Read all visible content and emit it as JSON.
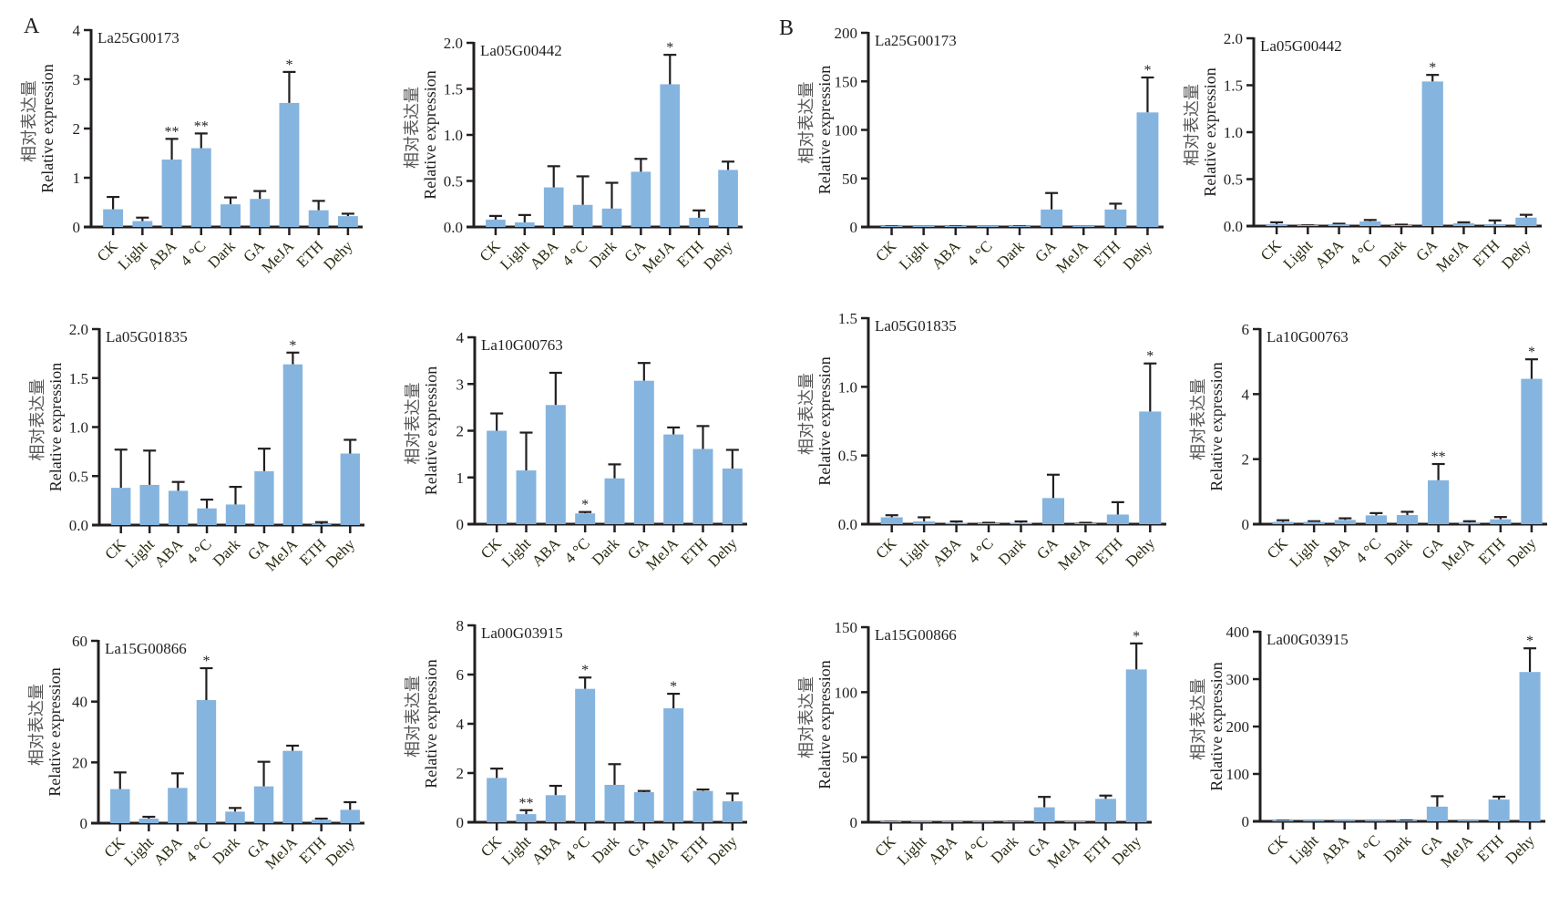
{
  "figure": {
    "panel_labels": [
      "A",
      "B"
    ],
    "bar_color": "#85b4df",
    "axis_color": "#231f20",
    "ylabel_cn": "相对表达量",
    "ylabel_en": "Relative expression"
  },
  "chart_data": [
    {
      "type": "bar",
      "group": "A",
      "title": "La25G00173",
      "categories": [
        "CK",
        "Light",
        "ABA",
        "4 °C",
        "Dark",
        "GA",
        "MeJA",
        "ETH",
        "Dehy"
      ],
      "values": [
        0.36,
        0.12,
        1.37,
        1.6,
        0.46,
        0.57,
        2.52,
        0.34,
        0.22
      ],
      "errors": [
        0.25,
        0.07,
        0.42,
        0.3,
        0.14,
        0.16,
        0.63,
        0.19,
        0.05
      ],
      "significance": [
        "",
        "",
        "**",
        "**",
        "",
        "",
        "*",
        "",
        ""
      ],
      "yticks": [
        "0",
        "1",
        "2",
        "3",
        "4"
      ],
      "ylim": [
        0,
        4
      ],
      "xlabel": "",
      "ylabel": "相对表达量 Relative expression"
    },
    {
      "type": "bar",
      "group": "A",
      "title": "La05G00442",
      "categories": [
        "CK",
        "Light",
        "ABA",
        "4 °C",
        "Dark",
        "GA",
        "MeJA",
        "ETH",
        "Dehy"
      ],
      "values": [
        0.08,
        0.05,
        0.43,
        0.24,
        0.2,
        0.6,
        1.55,
        0.1,
        0.62
      ],
      "errors": [
        0.04,
        0.08,
        0.23,
        0.31,
        0.28,
        0.14,
        0.32,
        0.08,
        0.09
      ],
      "significance": [
        "",
        "",
        "",
        "",
        "",
        "",
        "*",
        "",
        ""
      ],
      "yticks": [
        "0.0",
        "0.5",
        "1.0",
        "1.5",
        "2.0"
      ],
      "ylim": [
        0,
        2
      ],
      "xlabel": "",
      "ylabel": "相对表达量 Relative expression"
    },
    {
      "type": "bar",
      "group": "B",
      "title": "La25G00173",
      "categories": [
        "CK",
        "Light",
        "ABA",
        "4 °C",
        "Dark",
        "GA",
        "MeJA",
        "ETH",
        "Dehy"
      ],
      "values": [
        0.5,
        0.2,
        0.5,
        0.2,
        0.5,
        18,
        0.2,
        18,
        118
      ],
      "errors": [
        0.2,
        0.1,
        0.2,
        0.1,
        0.2,
        17,
        0.1,
        6,
        36
      ],
      "significance": [
        "",
        "",
        "",
        "",
        "",
        "",
        "",
        "",
        "*"
      ],
      "yticks": [
        "0",
        "50",
        "100",
        "150",
        "200"
      ],
      "ylim": [
        0,
        200
      ],
      "xlabel": "",
      "ylabel": "相对表达量 Relative expression"
    },
    {
      "type": "bar",
      "group": "B",
      "title": "La05G00442",
      "categories": [
        "CK",
        "Light",
        "ABA",
        "4 °C",
        "Dark",
        "GA",
        "MeJA",
        "ETH",
        "Dehy"
      ],
      "values": [
        0.02,
        0.005,
        0.02,
        0.05,
        0.01,
        1.54,
        0.03,
        0.02,
        0.09
      ],
      "errors": [
        0.02,
        0.003,
        0.005,
        0.015,
        0.005,
        0.07,
        0.01,
        0.04,
        0.03
      ],
      "significance": [
        "",
        "",
        "",
        "",
        "",
        "*",
        "",
        "",
        ""
      ],
      "yticks": [
        "0.0",
        "0.5",
        "1.0",
        "1.5",
        "2.0"
      ],
      "ylim": [
        0,
        2
      ],
      "xlabel": "",
      "ylabel": "相对表达量 Relative expression"
    },
    {
      "type": "bar",
      "group": "A",
      "title": "La05G01835",
      "categories": [
        "CK",
        "Light",
        "ABA",
        "4 °C",
        "Dark",
        "GA",
        "MeJA",
        "ETH",
        "Dehy"
      ],
      "values": [
        0.38,
        0.41,
        0.35,
        0.17,
        0.21,
        0.55,
        1.64,
        0.01,
        0.73
      ],
      "errors": [
        0.39,
        0.35,
        0.09,
        0.09,
        0.18,
        0.23,
        0.12,
        0.02,
        0.14
      ],
      "significance": [
        "",
        "",
        "",
        "",
        "",
        "",
        "*",
        "",
        ""
      ],
      "yticks": [
        "0.0",
        "0.5",
        "1.0",
        "1.5",
        "2.0"
      ],
      "ylim": [
        0,
        2
      ],
      "xlabel": "",
      "ylabel": "相对表达量 Relative expression"
    },
    {
      "type": "bar",
      "group": "A",
      "title": "La10G00763",
      "categories": [
        "CK",
        "Light",
        "ABA",
        "4 °C",
        "Dark",
        "GA",
        "MeJA",
        "ETH",
        "Dehy"
      ],
      "values": [
        2.0,
        1.15,
        2.55,
        0.23,
        0.98,
        3.07,
        1.92,
        1.61,
        1.19
      ],
      "errors": [
        0.37,
        0.81,
        0.69,
        0.03,
        0.3,
        0.38,
        0.15,
        0.49,
        0.4
      ],
      "significance": [
        "",
        "",
        "",
        "*",
        "",
        "",
        "",
        "",
        ""
      ],
      "yticks": [
        "0",
        "1",
        "2",
        "3",
        "4"
      ],
      "ylim": [
        0,
        4
      ],
      "xlabel": "",
      "ylabel": "相对表达量 Relative expression"
    },
    {
      "type": "bar",
      "group": "B",
      "title": "La05G01835",
      "categories": [
        "CK",
        "Light",
        "ABA",
        "4 °C",
        "Dark",
        "GA",
        "MeJA",
        "ETH",
        "Dehy"
      ],
      "values": [
        0.05,
        0.02,
        0.01,
        0.005,
        0.01,
        0.19,
        0.005,
        0.07,
        0.82
      ],
      "errors": [
        0.015,
        0.03,
        0.01,
        0.005,
        0.01,
        0.17,
        0.005,
        0.09,
        0.35
      ],
      "significance": [
        "",
        "",
        "",
        "",
        "",
        "",
        "",
        "",
        "*"
      ],
      "yticks": [
        "0.0",
        "0.5",
        "1.0",
        "1.5"
      ],
      "ylim": [
        0,
        1.5
      ],
      "xlabel": "",
      "ylabel": "相对表达量 Relative expression"
    },
    {
      "type": "bar",
      "group": "B",
      "title": "La10G00763",
      "categories": [
        "CK",
        "Light",
        "ABA",
        "4 °C",
        "Dark",
        "GA",
        "MeJA",
        "ETH",
        "Dehy"
      ],
      "values": [
        0.07,
        0.07,
        0.13,
        0.27,
        0.28,
        1.35,
        0.05,
        0.15,
        4.47
      ],
      "errors": [
        0.05,
        0.02,
        0.05,
        0.07,
        0.1,
        0.5,
        0.04,
        0.07,
        0.6
      ],
      "significance": [
        "",
        "",
        "",
        "",
        "",
        "**",
        "",
        "",
        "*"
      ],
      "yticks": [
        "0",
        "2",
        "4",
        "6"
      ],
      "ylim": [
        0,
        6
      ],
      "xlabel": "",
      "ylabel": "相对表达量 Relative expression"
    },
    {
      "type": "bar",
      "group": "A",
      "title": "La15G00866",
      "categories": [
        "CK",
        "Light",
        "ABA",
        "4 °C",
        "Dark",
        "GA",
        "MeJA",
        "ETH",
        "Dehy"
      ],
      "values": [
        11.2,
        1.5,
        11.6,
        40.5,
        3.8,
        12.1,
        23.8,
        1.1,
        4.4
      ],
      "errors": [
        5.5,
        0.6,
        4.8,
        10.5,
        1.2,
        8.1,
        1.7,
        0.4,
        2.5
      ],
      "significance": [
        "",
        "",
        "",
        "*",
        "",
        "",
        "",
        "",
        ""
      ],
      "yticks": [
        "0",
        "20",
        "40",
        "60"
      ],
      "ylim": [
        0,
        60
      ],
      "xlabel": "",
      "ylabel": "相对表达量 Relative expression"
    },
    {
      "type": "bar",
      "group": "A",
      "title": "La00G03915",
      "categories": [
        "CK",
        "Light",
        "ABA",
        "4 °C",
        "Dark",
        "GA",
        "MeJA",
        "ETH",
        "Dehy"
      ],
      "values": [
        1.8,
        0.33,
        1.1,
        5.42,
        1.52,
        1.22,
        4.63,
        1.27,
        0.85
      ],
      "errors": [
        0.38,
        0.16,
        0.38,
        0.46,
        0.84,
        0.05,
        0.59,
        0.06,
        0.32
      ],
      "significance": [
        "",
        "**",
        "",
        "*",
        "",
        "",
        "*",
        "",
        ""
      ],
      "yticks": [
        "0",
        "2",
        "4",
        "6",
        "8"
      ],
      "ylim": [
        0,
        8
      ],
      "xlabel": "",
      "ylabel": "相对表达量 Relative expression"
    },
    {
      "type": "bar",
      "group": "B",
      "title": "La15G00866",
      "categories": [
        "CK",
        "Light",
        "ABA",
        "4 °C",
        "Dark",
        "GA",
        "MeJA",
        "ETH",
        "Dehy"
      ],
      "values": [
        0.3,
        0.1,
        0.2,
        0.1,
        0.3,
        11.5,
        0.1,
        18.0,
        117.5
      ],
      "errors": [
        0.1,
        0.05,
        0.1,
        0.05,
        0.1,
        8.0,
        0.05,
        2.5,
        20.0
      ],
      "significance": [
        "",
        "",
        "",
        "",
        "",
        "",
        "",
        "",
        "*"
      ],
      "yticks": [
        "0",
        "50",
        "100",
        "150"
      ],
      "ylim": [
        0,
        150
      ],
      "xlabel": "",
      "ylabel": "相对表达量 Relative expression"
    },
    {
      "type": "bar",
      "group": "B",
      "title": "La00G03915",
      "categories": [
        "CK",
        "Light",
        "ABA",
        "4 °C",
        "Dark",
        "GA",
        "MeJA",
        "ETH",
        "Dehy"
      ],
      "values": [
        1.0,
        0.3,
        0.5,
        0.3,
        1.5,
        31,
        0.5,
        46,
        315
      ],
      "errors": [
        0.5,
        0.2,
        0.3,
        0.2,
        0.5,
        22,
        0.3,
        6,
        50
      ],
      "significance": [
        "",
        "",
        "",
        "",
        "",
        "",
        "",
        "",
        "*"
      ],
      "yticks": [
        "0",
        "100",
        "200",
        "300",
        "400"
      ],
      "ylim": [
        0,
        400
      ],
      "xlabel": "",
      "ylabel": "相对表达量 Relative expression"
    }
  ]
}
